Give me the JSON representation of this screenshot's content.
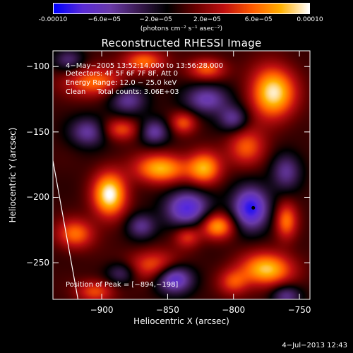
{
  "colorbar": {
    "ticks": [
      "-0.00010",
      "−6.0e−05",
      "−2.0e−05",
      "2.0e−05",
      "6.0e−05",
      "0.00010"
    ],
    "tick_values": [
      -0.0001,
      -6e-05,
      -2e-05,
      2e-05,
      6e-05,
      0.0001
    ],
    "range": [
      -0.0001,
      0.0001
    ],
    "units": "(photons cm⁻² s⁻¹ asec⁻²)",
    "colors": [
      "#0000ff",
      "#5a2bd8",
      "#6a3aa8",
      "#3a1a50",
      "#000000",
      "#6a0000",
      "#c01010",
      "#ff5a00",
      "#ffb000",
      "#ffffff"
    ]
  },
  "chart_data": {
    "type": "heatmap",
    "title": "Reconstructed RHESSI Image",
    "xlabel": "Heliocentric X (arcsec)",
    "ylabel": "Heliocentric Y (arcsec)",
    "xlim": [
      -937,
      -742
    ],
    "ylim": [
      -278,
      -88
    ],
    "xticks": [
      -900,
      -850,
      -800,
      -750
    ],
    "xtick_labels": [
      "−900",
      "−850",
      "−800",
      "−750"
    ],
    "yticks": [
      -100,
      -150,
      -200,
      -250
    ],
    "ytick_labels": [
      "−100",
      "−150",
      "−200",
      "−250"
    ],
    "annotations": [
      "4−May−2005 13:52:14.000 to 13:56:28.000",
      "Detectors: 4F 5F 6F 7F 8F, Att 0",
      "Energy Range: 12.0 − 25.0 keV",
      "Clean     Total counts: 3.06E+03"
    ],
    "peak_label": "Position of Peak = [−894,−198]",
    "peak": [
      -894,
      -198
    ],
    "marker": [
      -785,
      -208
    ],
    "limb_line": [
      [
        -937,
        -172
      ],
      [
        -918,
        -278
      ]
    ],
    "blobs": [
      {
        "x": -894,
        "y": -198,
        "sx": 9,
        "sy": 12,
        "a": 1.0
      },
      {
        "x": -770,
        "y": -120,
        "sx": 12,
        "sy": 14,
        "a": 0.95
      },
      {
        "x": -775,
        "y": -255,
        "sx": 14,
        "sy": 9,
        "a": 0.85
      },
      {
        "x": -855,
        "y": -178,
        "sx": 14,
        "sy": 8,
        "a": 0.8
      },
      {
        "x": -822,
        "y": -178,
        "sx": 9,
        "sy": 9,
        "a": 0.75
      },
      {
        "x": -812,
        "y": -222,
        "sx": 9,
        "sy": 7,
        "a": 0.75
      },
      {
        "x": -905,
        "y": -112,
        "sx": 16,
        "sy": 8,
        "a": 0.6
      },
      {
        "x": -868,
        "y": -96,
        "sx": 11,
        "sy": 6,
        "a": 0.6
      },
      {
        "x": -820,
        "y": -102,
        "sx": 10,
        "sy": 6,
        "a": 0.55
      },
      {
        "x": -790,
        "y": -162,
        "sx": 10,
        "sy": 10,
        "a": 0.55
      },
      {
        "x": -760,
        "y": -218,
        "sx": 6,
        "sy": 10,
        "a": 0.6
      },
      {
        "x": -920,
        "y": -228,
        "sx": 10,
        "sy": 8,
        "a": 0.6
      },
      {
        "x": -860,
        "y": -252,
        "sx": 14,
        "sy": 8,
        "a": 0.55
      },
      {
        "x": -885,
        "y": -148,
        "sx": 10,
        "sy": 6,
        "a": 0.5
      },
      {
        "x": -838,
        "y": -143,
        "sx": 7,
        "sy": 6,
        "a": 0.5
      },
      {
        "x": -905,
        "y": -272,
        "sx": 10,
        "sy": 6,
        "a": 0.5
      },
      {
        "x": -835,
        "y": -230,
        "sx": 7,
        "sy": 6,
        "a": 0.45
      },
      {
        "x": -800,
        "y": -265,
        "sx": 8,
        "sy": 7,
        "a": 0.45
      },
      {
        "x": -787,
        "y": -208,
        "sx": 10,
        "sy": 12,
        "a": -0.9
      },
      {
        "x": -835,
        "y": -208,
        "sx": 12,
        "sy": 10,
        "a": -0.8
      },
      {
        "x": -845,
        "y": -262,
        "sx": 10,
        "sy": 8,
        "a": -0.8
      },
      {
        "x": -820,
        "y": -125,
        "sx": 12,
        "sy": 8,
        "a": -0.6
      },
      {
        "x": -880,
        "y": -125,
        "sx": 10,
        "sy": 8,
        "a": -0.55
      },
      {
        "x": -910,
        "y": -150,
        "sx": 10,
        "sy": 8,
        "a": -0.55
      },
      {
        "x": -860,
        "y": -150,
        "sx": 8,
        "sy": 7,
        "a": -0.55
      },
      {
        "x": -800,
        "y": -140,
        "sx": 8,
        "sy": 7,
        "a": -0.5
      },
      {
        "x": -870,
        "y": -222,
        "sx": 8,
        "sy": 7,
        "a": -0.5
      },
      {
        "x": -760,
        "y": -180,
        "sx": 8,
        "sy": 10,
        "a": -0.5
      },
      {
        "x": -760,
        "y": -275,
        "sx": 8,
        "sy": 6,
        "a": -0.5
      },
      {
        "x": -925,
        "y": -95,
        "sx": 8,
        "sy": 6,
        "a": -0.4
      },
      {
        "x": -885,
        "y": -258,
        "sx": 8,
        "sy": 6,
        "a": -0.4
      }
    ]
  },
  "footer": "4−Jul−2013 12:43"
}
